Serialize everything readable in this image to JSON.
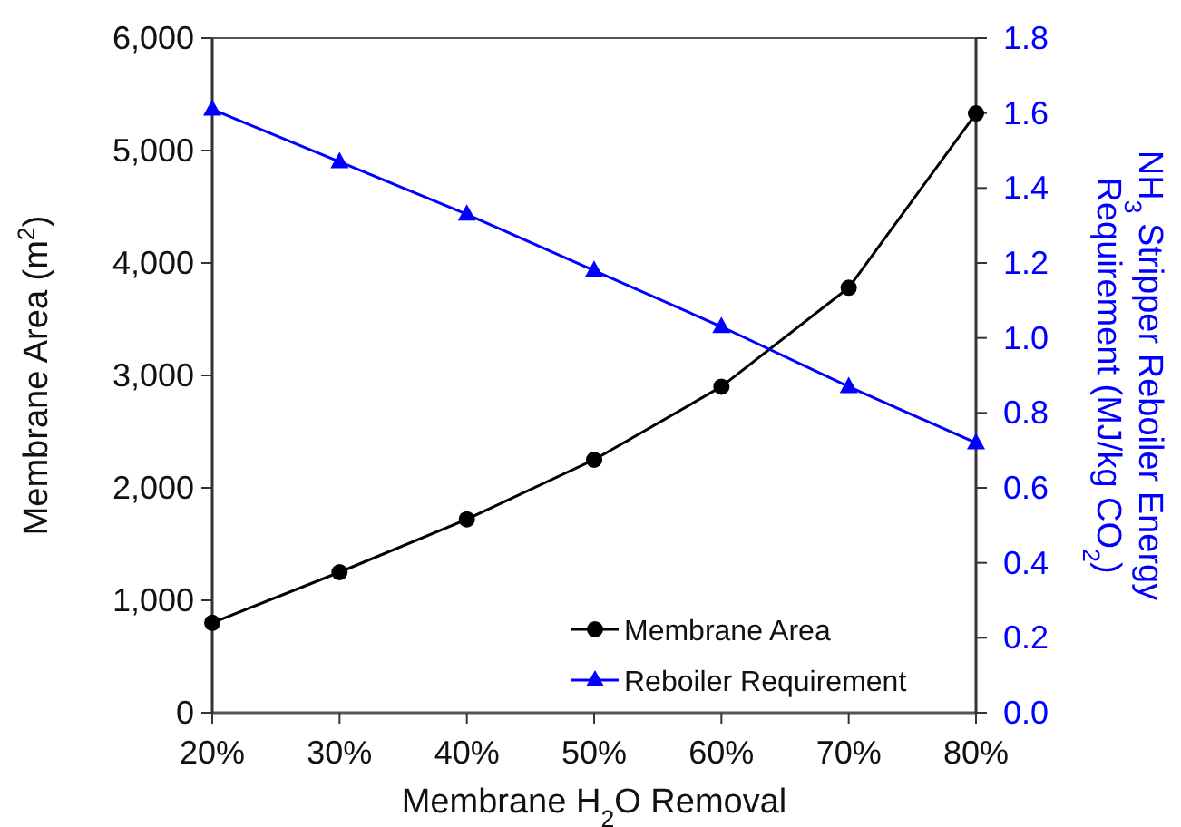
{
  "chart_data": {
    "type": "line",
    "xlabel": "Membrane H$_{2}$O Removal",
    "ylabel": "Membrane Area (m$^{2}$)",
    "y2label": "NH$_{3}$ Stripper Reboiler Energy Requirement (MJ/kg CO$_{2}$)",
    "x": [
      20,
      30,
      40,
      50,
      60,
      70,
      80
    ],
    "xlim": [
      20,
      80
    ],
    "xticks": [
      {
        "value": 20,
        "label": "20%"
      },
      {
        "value": 30,
        "label": "30%"
      },
      {
        "value": 40,
        "label": "40%"
      },
      {
        "value": 50,
        "label": "50%"
      },
      {
        "value": 60,
        "label": "60%"
      },
      {
        "value": 70,
        "label": "70%"
      },
      {
        "value": 80,
        "label": "80%"
      }
    ],
    "ylim": [
      0,
      6000
    ],
    "yticks": [
      {
        "value": 0,
        "label": "0"
      },
      {
        "value": 1000,
        "label": "1,000"
      },
      {
        "value": 2000,
        "label": "2,000"
      },
      {
        "value": 3000,
        "label": "3,000"
      },
      {
        "value": 4000,
        "label": "4,000"
      },
      {
        "value": 5000,
        "label": "5,000"
      },
      {
        "value": 6000,
        "label": "6,000"
      }
    ],
    "y2lim": [
      0,
      1.8
    ],
    "y2ticks": [
      {
        "value": 0,
        "label": "0.0"
      },
      {
        "value": 0.2,
        "label": "0.2"
      },
      {
        "value": 0.4,
        "label": "0.4"
      },
      {
        "value": 0.6,
        "label": "0.6"
      },
      {
        "value": 0.8,
        "label": "0.8"
      },
      {
        "value": 1,
        "label": "1.0"
      },
      {
        "value": 1.2,
        "label": "1.2"
      },
      {
        "value": 1.4,
        "label": "1.4"
      },
      {
        "value": 1.6,
        "label": "1.6"
      },
      {
        "value": 1.8,
        "label": "1.8"
      }
    ],
    "series": [
      {
        "name": "Membrane Area",
        "color": "#000000",
        "marker": "circle",
        "values": [
          800,
          1250,
          1720,
          2250,
          2900,
          3780,
          5330
        ]
      },
      {
        "name": "Reboiler Requirement",
        "color": "#0000ff",
        "marker": "triangle",
        "axis": "y2",
        "values": [
          1.61,
          1.47,
          1.33,
          1.18,
          1.03,
          0.87,
          0.72
        ]
      }
    ],
    "grid": false,
    "legend": "bottom right"
  }
}
